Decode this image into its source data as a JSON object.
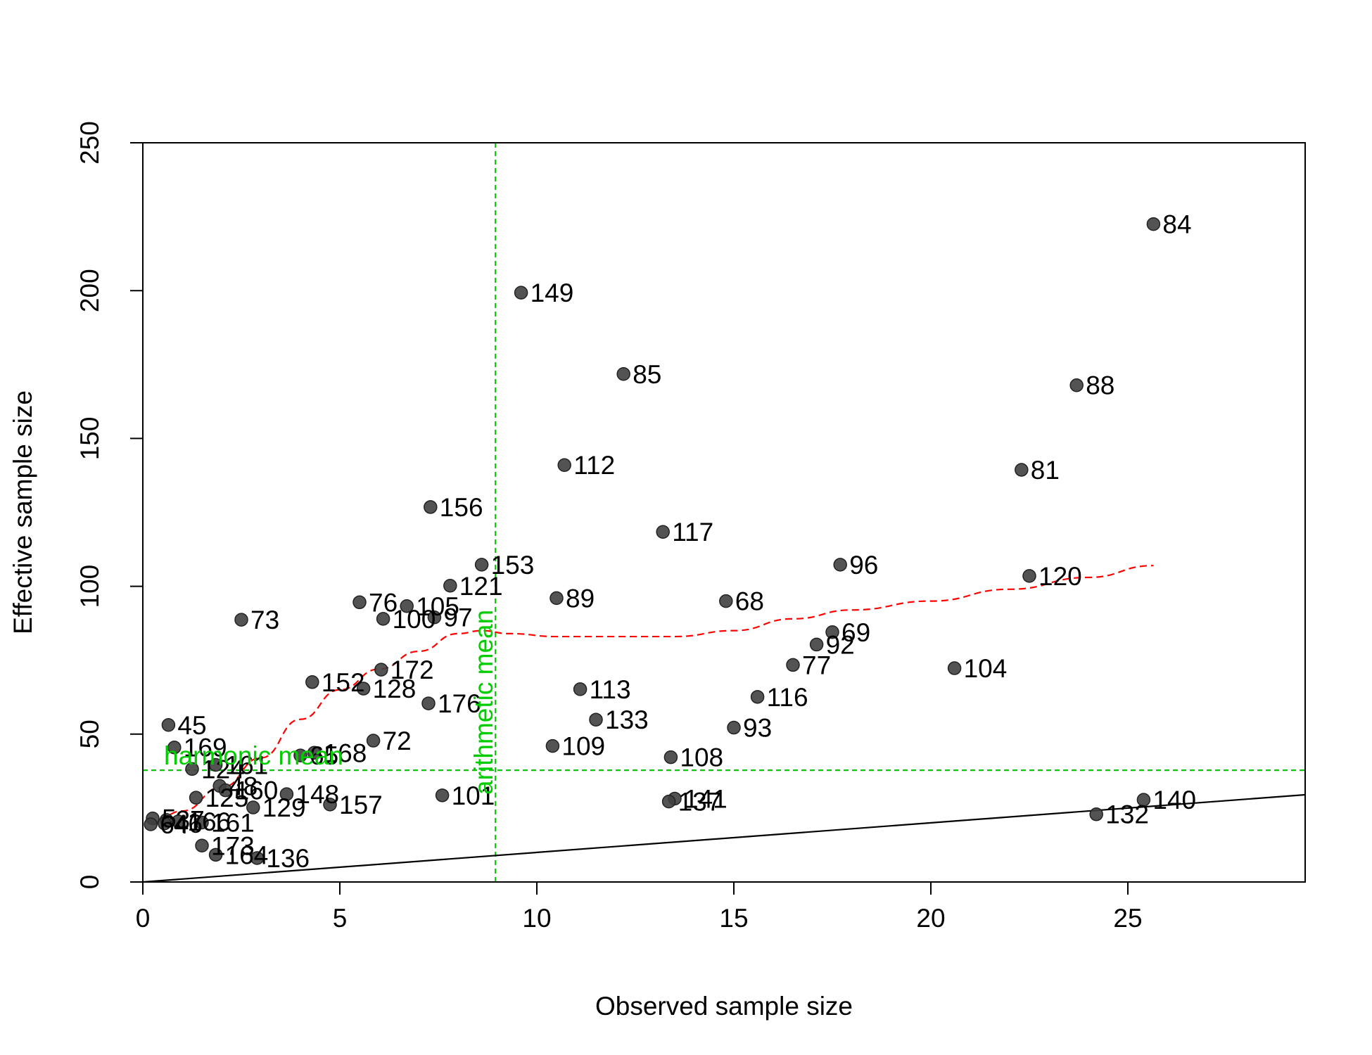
{
  "chart_data": {
    "type": "scatter",
    "xlabel": "Observed sample size",
    "ylabel": "Effective sample size",
    "xlim": [
      0,
      29.5
    ],
    "ylim": [
      0,
      250
    ],
    "x_ticks": [
      0,
      5,
      10,
      15,
      20,
      25
    ],
    "y_ticks": [
      0,
      50,
      100,
      150,
      200,
      250
    ],
    "grid": false,
    "points": [
      {
        "label": "84",
        "x": 25.65,
        "y": 222.5
      },
      {
        "label": "149",
        "x": 9.6,
        "y": 199.3
      },
      {
        "label": "85",
        "x": 12.2,
        "y": 171.8
      },
      {
        "label": "88",
        "x": 23.7,
        "y": 168
      },
      {
        "label": "112",
        "x": 10.7,
        "y": 141
      },
      {
        "label": "81",
        "x": 22.3,
        "y": 139.4
      },
      {
        "label": "156",
        "x": 7.3,
        "y": 126.8
      },
      {
        "label": "117",
        "x": 13.2,
        "y": 118.4
      },
      {
        "label": "153",
        "x": 8.6,
        "y": 107.3
      },
      {
        "label": "96",
        "x": 17.7,
        "y": 107.3
      },
      {
        "label": "120",
        "x": 22.5,
        "y": 103.5
      },
      {
        "label": "121",
        "x": 7.8,
        "y": 100.2
      },
      {
        "label": "89",
        "x": 10.5,
        "y": 96
      },
      {
        "label": "68",
        "x": 14.8,
        "y": 95
      },
      {
        "label": "76",
        "x": 5.5,
        "y": 94.6
      },
      {
        "label": "105",
        "x": 6.7,
        "y": 93.3
      },
      {
        "label": "100",
        "x": 6.1,
        "y": 89
      },
      {
        "label": "97",
        "x": 7.4,
        "y": 89.5
      },
      {
        "label": "73",
        "x": 2.5,
        "y": 88.7
      },
      {
        "label": "69",
        "x": 17.5,
        "y": 84.5
      },
      {
        "label": "92",
        "x": 17.1,
        "y": 80.3
      },
      {
        "label": "77",
        "x": 16.5,
        "y": 73.4
      },
      {
        "label": "172",
        "x": 6.05,
        "y": 71.8
      },
      {
        "label": "104",
        "x": 20.6,
        "y": 72.3
      },
      {
        "label": "152",
        "x": 4.3,
        "y": 67.6
      },
      {
        "label": "128",
        "x": 5.6,
        "y": 65.4
      },
      {
        "label": "113",
        "x": 11.1,
        "y": 65.2
      },
      {
        "label": "116",
        "x": 15.6,
        "y": 62.6
      },
      {
        "label": "176",
        "x": 7.25,
        "y": 60.4
      },
      {
        "label": "133",
        "x": 11.5,
        "y": 54.9
      },
      {
        "label": "45",
        "x": 0.65,
        "y": 53.1
      },
      {
        "label": "93",
        "x": 15,
        "y": 52.2
      },
      {
        "label": "72",
        "x": 5.85,
        "y": 47.8
      },
      {
        "label": "109",
        "x": 10.4,
        "y": 46
      },
      {
        "label": "169",
        "x": 0.8,
        "y": 45.5
      },
      {
        "label": "168",
        "x": 4.35,
        "y": 43.7
      },
      {
        "label": "65",
        "x": 4.0,
        "y": 42.8
      },
      {
        "label": "108",
        "x": 13.4,
        "y": 42.2
      },
      {
        "label": "124",
        "x": 1.25,
        "y": 38.2
      },
      {
        "label": "161",
        "x": 1.85,
        "y": 39.6
      },
      {
        "label": "48",
        "x": 1.95,
        "y": 32.5
      },
      {
        "label": "160",
        "x": 2.1,
        "y": 31
      },
      {
        "label": "148",
        "x": 3.65,
        "y": 29.7
      },
      {
        "label": "101",
        "x": 7.6,
        "y": 29.3
      },
      {
        "label": "125",
        "x": 1.35,
        "y": 28.5
      },
      {
        "label": "141",
        "x": 13.5,
        "y": 28.2
      },
      {
        "label": "140",
        "x": 25.4,
        "y": 27.8
      },
      {
        "label": "137",
        "x": 13.35,
        "y": 27.2
      },
      {
        "label": "157",
        "x": 4.75,
        "y": 26.2
      },
      {
        "label": "129",
        "x": 2.8,
        "y": 25.2
      },
      {
        "label": "132",
        "x": 24.2,
        "y": 22.9
      },
      {
        "label": "5",
        "x": 0.25,
        "y": 21.5
      },
      {
        "label": "37",
        "x": 0.6,
        "y": 21
      },
      {
        "label": "166",
        "x": 0.9,
        "y": 20.5
      },
      {
        "label": "161",
        "x": 1.5,
        "y": 20.1
      },
      {
        "label": "64",
        "x": 0.2,
        "y": 19.5
      },
      {
        "label": "46",
        "x": 0.55,
        "y": 19.8
      },
      {
        "label": "173",
        "x": 1.5,
        "y": 12.3
      },
      {
        "label": "164",
        "x": 1.85,
        "y": 9.2
      },
      {
        "label": "136",
        "x": 2.9,
        "y": 8.1
      }
    ],
    "smooth_line": [
      [
        0.2,
        19.5
      ],
      [
        1.0,
        24
      ],
      [
        2.0,
        32
      ],
      [
        3.0,
        42
      ],
      [
        4.0,
        55
      ],
      [
        5.0,
        65
      ],
      [
        6.0,
        72
      ],
      [
        7.0,
        78
      ],
      [
        8.0,
        84
      ],
      [
        8.6,
        85
      ],
      [
        9.3,
        84
      ],
      [
        10.5,
        83
      ],
      [
        12.0,
        83
      ],
      [
        13.5,
        83
      ],
      [
        15.0,
        85
      ],
      [
        16.5,
        89
      ],
      [
        18.0,
        92
      ],
      [
        20.0,
        95
      ],
      [
        22.0,
        99
      ],
      [
        24.0,
        103
      ],
      [
        25.65,
        107
      ]
    ],
    "identity_line": [
      [
        0,
        0
      ],
      [
        29.5,
        29.5
      ]
    ],
    "reference_lines": [
      {
        "label": "arithmetic mean",
        "orientation": "vertical",
        "value": 8.95
      },
      {
        "label": "harmonic mean",
        "orientation": "horizontal",
        "value": 37.8
      }
    ],
    "colors": {
      "points": "#404040",
      "smooth": "#ff0000",
      "reference": "#00cc00",
      "identity": "#000000"
    }
  }
}
